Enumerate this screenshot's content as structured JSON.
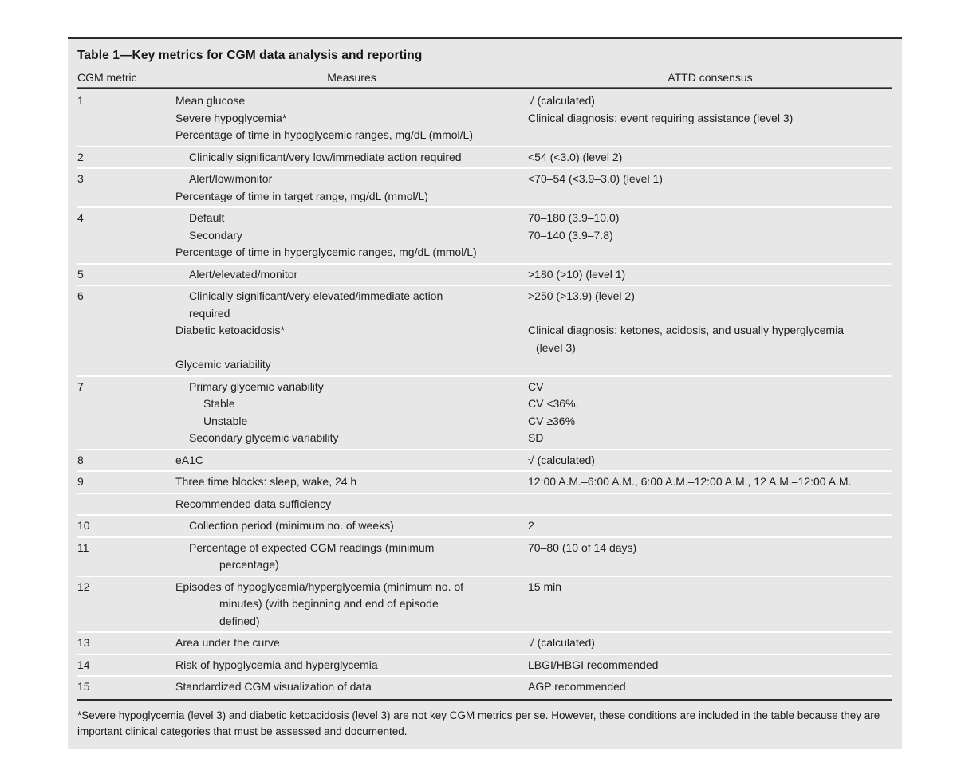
{
  "page": {
    "title": "Table 1—Key metrics for CGM data analysis and reporting",
    "columns": [
      "CGM metric",
      "Measures",
      "ATTD consensus"
    ],
    "rows": [
      {
        "metric": "1",
        "lines": [
          {
            "m": "Mean glucose",
            "mi": 0,
            "c": "√ (calculated)",
            "ci": 0
          },
          {
            "m": "Severe hypoglycemia*",
            "mi": 0,
            "c": "Clinical diagnosis: event requiring assistance (level 3)",
            "ci": 0
          },
          {
            "m": "Percentage of time in hypoglycemic ranges, mg/dL (mmol/L)",
            "mi": 0,
            "c": "",
            "ci": 0
          }
        ]
      },
      {
        "metric": "2",
        "lines": [
          {
            "m": "Clinically significant/very low/immediate action required",
            "mi": 1,
            "c": "<54 (<3.0) (level 2)",
            "ci": 0
          }
        ]
      },
      {
        "metric": "3",
        "lines": [
          {
            "m": "Alert/low/monitor",
            "mi": 1,
            "c": "<70–54 (<3.9–3.0) (level 1)",
            "ci": 0
          },
          {
            "m": "Percentage of time in target range, mg/dL (mmol/L)",
            "mi": 0,
            "c": "",
            "ci": 0
          }
        ]
      },
      {
        "metric": "4",
        "lines": [
          {
            "m": "Default",
            "mi": 1,
            "c": "70–180 (3.9–10.0)",
            "ci": 0
          },
          {
            "m": "Secondary",
            "mi": 1,
            "c": "70–140 (3.9–7.8)",
            "ci": 0
          },
          {
            "m": "Percentage of time in hyperglycemic ranges, mg/dL (mmol/L)",
            "mi": 0,
            "c": "",
            "ci": 0
          }
        ]
      },
      {
        "metric": "5",
        "lines": [
          {
            "m": "Alert/elevated/monitor",
            "mi": 1,
            "c": ">180 (>10) (level 1)",
            "ci": 0
          }
        ]
      },
      {
        "metric": "6",
        "lines": [
          {
            "m": "Clinically significant/very elevated/immediate action",
            "mi": 1,
            "c": ">250 (>13.9) (level 2)",
            "ci": 0
          },
          {
            "m": "required",
            "mi": 1,
            "c": "",
            "ci": 0
          },
          {
            "m": "Diabetic ketoacidosis*",
            "mi": 0,
            "c": "Clinical diagnosis: ketones, acidosis, and usually hyperglycemia",
            "ci": 0
          },
          {
            "m": "",
            "mi": 0,
            "c": "(level 3)",
            "ci": 1
          },
          {
            "m": "Glycemic variability",
            "mi": 0,
            "c": "",
            "ci": 0
          }
        ]
      },
      {
        "metric": "7",
        "lines": [
          {
            "m": "Primary glycemic variability",
            "mi": 1,
            "c": "CV",
            "ci": 0
          },
          {
            "m": "Stable",
            "mi": 2,
            "c": "CV <36%,",
            "ci": 0
          },
          {
            "m": "Unstable",
            "mi": 2,
            "c": "CV ≥36%",
            "ci": 0
          },
          {
            "m": "Secondary glycemic variability",
            "mi": 1,
            "c": "SD",
            "ci": 0
          }
        ]
      },
      {
        "metric": "8",
        "lines": [
          {
            "m": "eA1C",
            "mi": 0,
            "c": "√ (calculated)",
            "ci": 0
          }
        ]
      },
      {
        "metric": "9",
        "lines": [
          {
            "m": "Three time blocks: sleep, wake, 24 h",
            "mi": 0,
            "c": "12:00 A.M.–6:00 A.M., 6:00 A.M.–12:00 A.M., 12 A.M.–12:00 A.M.",
            "ci": 0
          }
        ]
      },
      {
        "metric": "",
        "lines": [
          {
            "m": "Recommended data sufficiency",
            "mi": 0,
            "c": "",
            "ci": 0
          }
        ]
      },
      {
        "metric": "10",
        "lines": [
          {
            "m": "Collection period (minimum no. of weeks)",
            "mi": 1,
            "c": "2",
            "ci": 0
          }
        ]
      },
      {
        "metric": "11",
        "lines": [
          {
            "m": "Percentage of expected CGM readings (minimum",
            "mi": 1,
            "c": "70–80 (10 of 14 days)",
            "ci": 0
          },
          {
            "m": "percentage)",
            "mi": 3,
            "c": "",
            "ci": 0
          }
        ]
      },
      {
        "metric": "12",
        "lines": [
          {
            "m": "Episodes of hypoglycemia/hyperglycemia (minimum no. of",
            "mi": 0,
            "c": "15 min",
            "ci": 0
          },
          {
            "m": "minutes) (with beginning and end of episode",
            "mi": 3,
            "c": "",
            "ci": 0
          },
          {
            "m": "defined)",
            "mi": 3,
            "c": "",
            "ci": 0
          }
        ]
      },
      {
        "metric": "13",
        "lines": [
          {
            "m": "Area under the curve",
            "mi": 0,
            "c": "√ (calculated)",
            "ci": 0
          }
        ]
      },
      {
        "metric": "14",
        "lines": [
          {
            "m": "Risk of hypoglycemia and hyperglycemia",
            "mi": 0,
            "c": "LBGI/HBGI recommended",
            "ci": 0
          }
        ]
      },
      {
        "metric": "15",
        "lines": [
          {
            "m": "Standardized CGM visualization of data",
            "mi": 0,
            "c": "AGP recommended",
            "ci": 0
          }
        ]
      }
    ],
    "footnote": "*Severe hypoglycemia (level 3) and diabetic ketoacidosis (level 3) are not key CGM metrics per se. However, these conditions are included in the table because they are important clinical categories that must be assessed and documented.",
    "colors": {
      "panel_bg": "#e7e7e7",
      "rule": "#2a2a2a",
      "row_separator": "#ffffff",
      "text": "#1e1e1e"
    }
  }
}
